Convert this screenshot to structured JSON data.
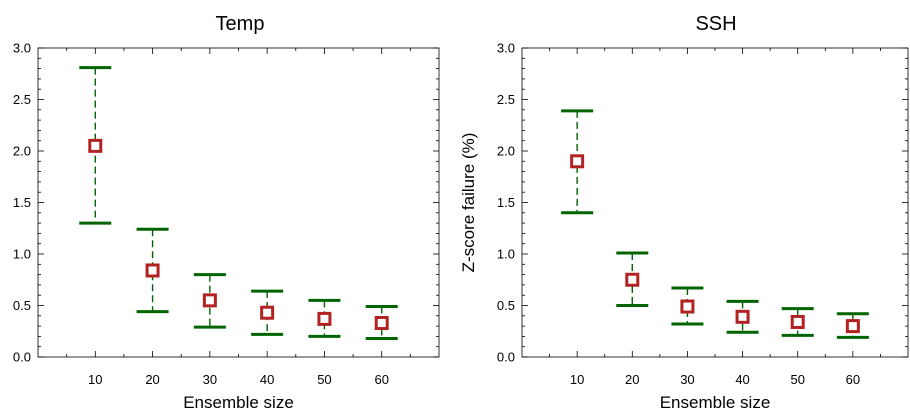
{
  "chart_data": [
    {
      "type": "scatter",
      "title": "Temp",
      "xlabel": "Ensemble size",
      "ylabel": "",
      "xlim": [
        0,
        70
      ],
      "ylim": [
        0,
        3.0
      ],
      "x_ticks": [
        10,
        20,
        30,
        40,
        50,
        60
      ],
      "x_tick_labels": [
        "10",
        "20",
        "30",
        "40",
        "50",
        "60"
      ],
      "y_ticks": [
        0,
        0.5,
        1.0,
        1.5,
        2.0,
        2.5,
        3.0
      ],
      "y_tick_labels": [
        "0.0",
        "0.5",
        "1.0",
        "1.5",
        "2.0",
        "2.5",
        "3.0"
      ],
      "x": [
        10,
        20,
        30,
        40,
        50,
        60
      ],
      "y": [
        2.05,
        0.84,
        0.55,
        0.43,
        0.37,
        0.33
      ],
      "err_low": [
        1.3,
        0.44,
        0.29,
        0.22,
        0.2,
        0.18
      ],
      "err_high": [
        2.81,
        1.24,
        0.8,
        0.64,
        0.55,
        0.49
      ],
      "grid": false,
      "colors": {
        "marker": "#b22222",
        "error_bar": "#006400"
      }
    },
    {
      "type": "scatter",
      "title": "SSH",
      "xlabel": "Ensemble size",
      "ylabel": "Z-score failure (%)",
      "xlim": [
        0,
        70
      ],
      "ylim": [
        0,
        3.0
      ],
      "x_ticks": [
        10,
        20,
        30,
        40,
        50,
        60
      ],
      "x_tick_labels": [
        "10",
        "20",
        "30",
        "40",
        "50",
        "60"
      ],
      "y_ticks": [
        0,
        0.5,
        1.0,
        1.5,
        2.0,
        2.5,
        3.0
      ],
      "y_tick_labels": [
        "0.0",
        "0.5",
        "1.0",
        "1.5",
        "2.0",
        "2.5",
        "3.0"
      ],
      "x": [
        10,
        20,
        30,
        40,
        50,
        60
      ],
      "y": [
        1.9,
        0.75,
        0.49,
        0.39,
        0.34,
        0.3
      ],
      "err_low": [
        1.4,
        0.5,
        0.32,
        0.24,
        0.21,
        0.19
      ],
      "err_high": [
        2.39,
        1.01,
        0.67,
        0.54,
        0.47,
        0.42
      ],
      "grid": false,
      "colors": {
        "marker": "#b22222",
        "error_bar": "#006400"
      }
    }
  ]
}
